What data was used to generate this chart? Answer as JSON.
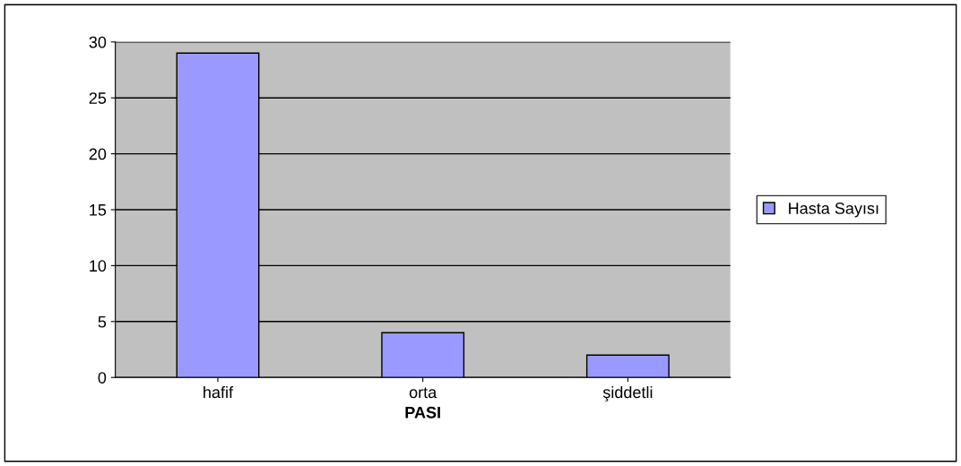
{
  "chart_data": {
    "type": "bar",
    "xlabel": "PASI",
    "categories": [
      "hafif",
      "orta",
      "şiddetli"
    ],
    "series": [
      {
        "name": "Hasta Sayısı",
        "color": "#9999ff",
        "values": [
          29,
          4,
          2
        ]
      }
    ],
    "ylim": [
      0,
      30
    ],
    "yticks": [
      0,
      5,
      10,
      15,
      20,
      25,
      30
    ],
    "grid": "y",
    "legend": "right"
  }
}
